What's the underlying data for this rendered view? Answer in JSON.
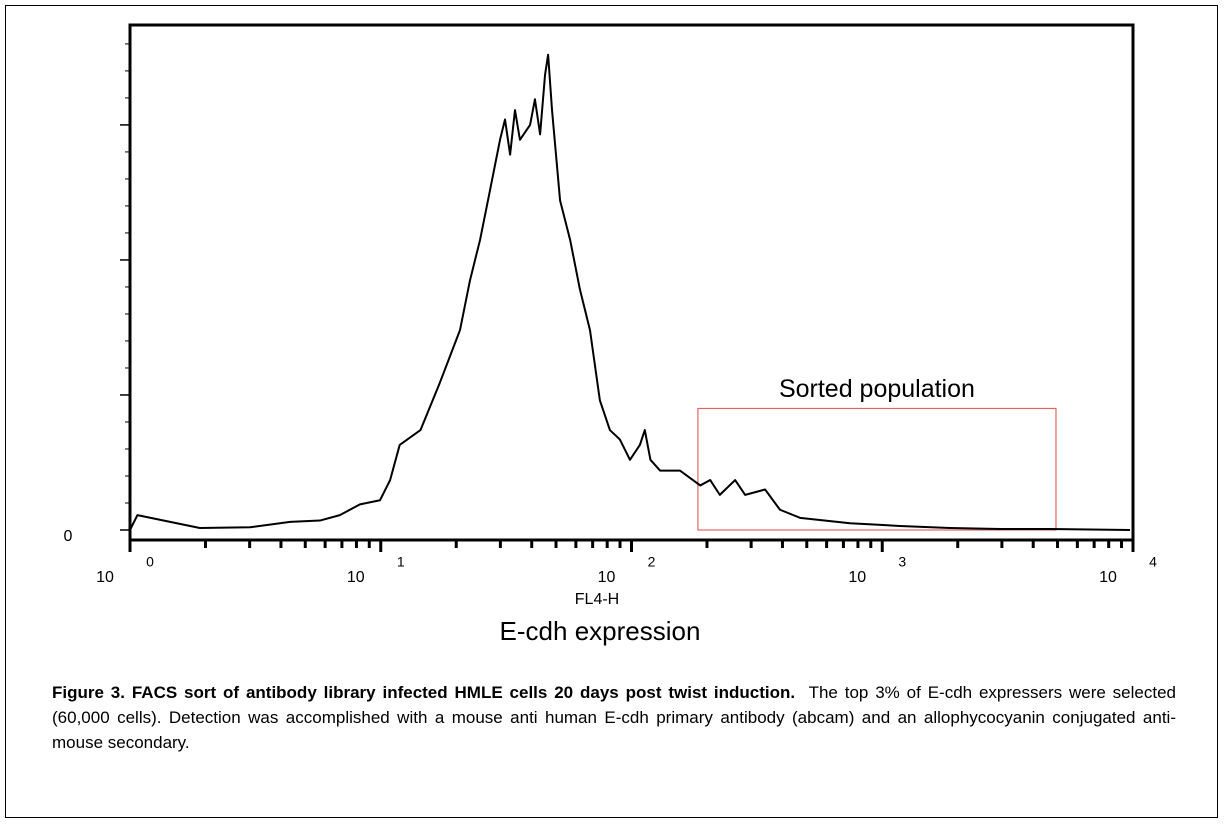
{
  "chart_data": {
    "type": "line",
    "x_label": "FL4-H",
    "x_title": "E-cdh expression",
    "x": [
      1,
      1.07,
      1.9,
      3.01,
      4.35,
      5.72,
      6.87,
      8.26,
      9.93,
      10.9,
      11.9,
      14.4,
      17.2,
      20.7,
      22.7,
      24.9,
      27.3,
      29.9,
      31.3,
      32.8,
      34.3,
      35.9,
      39.4,
      41.2,
      43.2,
      45.2,
      46.5,
      48.2,
      51.9,
      56.9,
      62.3,
      68.3,
      74.8,
      82.0,
      89.9,
      98.6,
      108,
      113,
      119,
      130,
      156,
      188,
      206,
      225,
      259,
      284,
      341,
      391,
      470,
      744,
      1177,
      1862,
      2950,
      4670,
      9730
    ],
    "series": [
      {
        "color": "#000000",
        "values": [
          0,
          0.11,
          0.015,
          0.02,
          0.06,
          0.07,
          0.11,
          0.19,
          0.22,
          0.37,
          0.63,
          0.74,
          1.09,
          1.48,
          1.85,
          2.15,
          2.52,
          2.89,
          3.04,
          2.78,
          3.11,
          2.89,
          3.0,
          3.19,
          2.93,
          3.37,
          3.52,
          3.11,
          2.44,
          2.15,
          1.78,
          1.48,
          0.96,
          0.74,
          0.67,
          0.52,
          0.63,
          0.74,
          0.52,
          0.44,
          0.44,
          0.33,
          0.37,
          0.26,
          0.37,
          0.26,
          0.3,
          0.15,
          0.09,
          0.05,
          0.03,
          0.015,
          0.007,
          0.007,
          0
        ]
      }
    ],
    "xlog": true,
    "xlim": [
      1,
      10000
    ],
    "xticks": [
      {
        "value": 1,
        "label": "10",
        "exponent": "0"
      },
      {
        "value": 10,
        "label": "10",
        "exponent": "1"
      },
      {
        "value": 100,
        "label": "10",
        "exponent": "2"
      },
      {
        "value": 1000,
        "label": "10",
        "exponent": "3"
      },
      {
        "value": 10000,
        "label": "10",
        "exponent": "4"
      }
    ],
    "ylim": [
      0,
      3.74
    ],
    "yticks": [
      0,
      {
        "value": 1,
        "label": null
      },
      {
        "value": 2,
        "label": null
      },
      {
        "value": 3,
        "label": null
      }
    ],
    "gate": {
      "x": [
        184,
        4930
      ],
      "y": [
        0,
        0.9
      ],
      "label": "Sorted population",
      "color": "#e06666"
    }
  },
  "caption": {
    "label": "Figure 3.  FACS sort of antibody library infected HMLE cells 20 days post twist induction.",
    "text": "The top 3% of E-cdh expressers were selected (60,000 cells).  Detection was accomplished with a mouse anti human E-cdh primary antibody (abcam) and an allophycocyanin conjugated anti-mouse secondary."
  }
}
